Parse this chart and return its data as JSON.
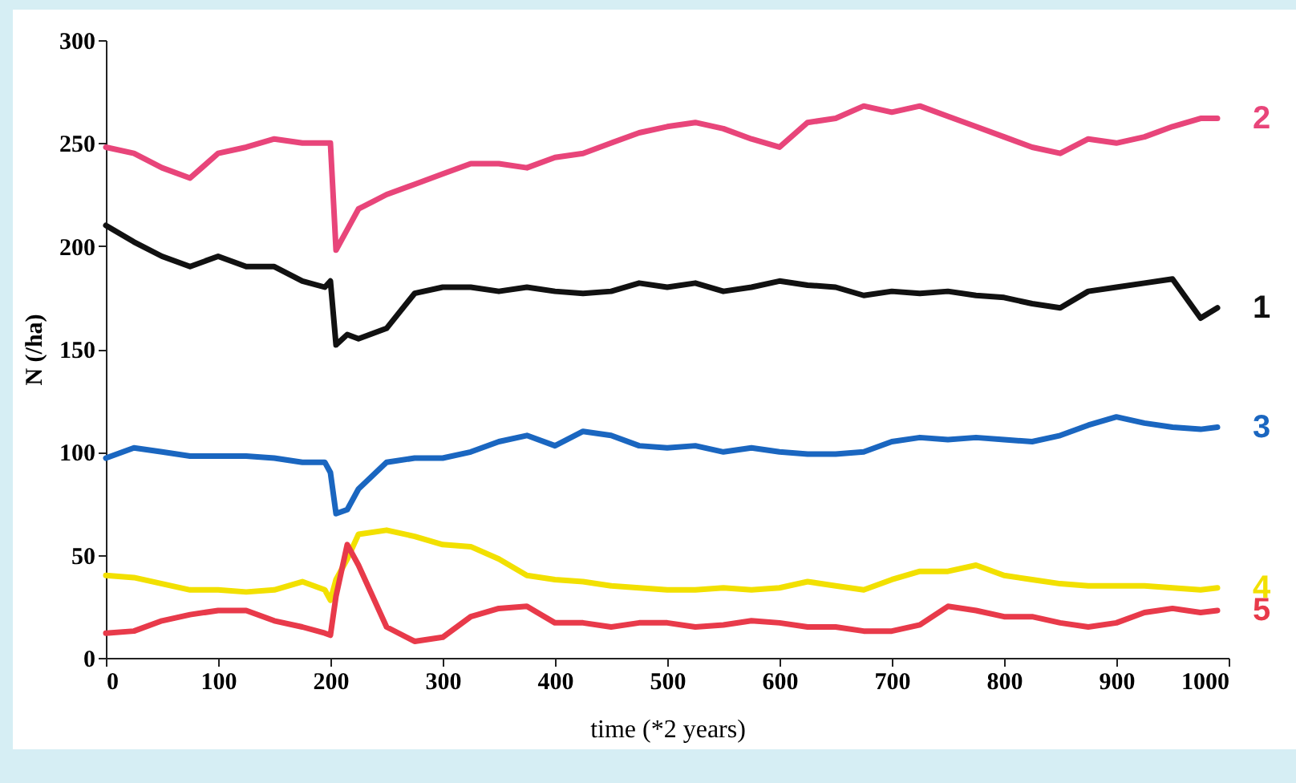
{
  "chart_data": {
    "type": "line",
    "xlabel": "time (*2 years)",
    "ylabel": "N (/ha)",
    "x": [
      0,
      25,
      50,
      75,
      100,
      125,
      150,
      175,
      195,
      200,
      205,
      215,
      225,
      250,
      275,
      300,
      325,
      350,
      375,
      400,
      425,
      450,
      475,
      500,
      525,
      550,
      575,
      600,
      625,
      650,
      675,
      700,
      725,
      750,
      775,
      800,
      825,
      850,
      875,
      900,
      925,
      950,
      975,
      990
    ],
    "xlim": [
      0,
      1000
    ],
    "xticks": [
      0,
      100,
      200,
      300,
      400,
      500,
      600,
      700,
      800,
      900,
      1000
    ],
    "ylim": [
      0,
      300
    ],
    "yticks": [
      0,
      50,
      100,
      150,
      200,
      250,
      300
    ],
    "grid": false,
    "legend": false,
    "marker": "none",
    "line_style": "solid",
    "series": [
      {
        "name": "1",
        "color": "#111111",
        "values": [
          210,
          202,
          195,
          190,
          195,
          190,
          190,
          183,
          180,
          183,
          152,
          157,
          155,
          160,
          177,
          180,
          180,
          178,
          180,
          178,
          177,
          178,
          182,
          180,
          182,
          178,
          180,
          183,
          181,
          180,
          176,
          178,
          177,
          178,
          176,
          175,
          172,
          170,
          178,
          180,
          182,
          184,
          165,
          170
        ]
      },
      {
        "name": "2",
        "color": "#e8457a",
        "values": [
          248,
          245,
          238,
          233,
          245,
          248,
          252,
          250,
          250,
          250,
          198,
          208,
          218,
          225,
          230,
          235,
          240,
          240,
          238,
          243,
          245,
          250,
          255,
          258,
          260,
          257,
          252,
          248,
          260,
          262,
          268,
          265,
          268,
          263,
          258,
          253,
          248,
          245,
          252,
          250,
          253,
          258,
          262,
          262
        ]
      },
      {
        "name": "3",
        "color": "#1a66c0",
        "values": [
          97,
          102,
          100,
          98,
          98,
          98,
          97,
          95,
          95,
          90,
          70,
          72,
          82,
          95,
          97,
          97,
          100,
          105,
          108,
          103,
          110,
          108,
          103,
          102,
          103,
          100,
          102,
          100,
          99,
          99,
          100,
          105,
          107,
          106,
          107,
          106,
          105,
          108,
          113,
          117,
          114,
          112,
          111,
          112
        ]
      },
      {
        "name": "4",
        "color": "#f2e000",
        "values": [
          40,
          39,
          36,
          33,
          33,
          32,
          33,
          37,
          33,
          28,
          38,
          48,
          60,
          62,
          59,
          55,
          54,
          48,
          40,
          38,
          37,
          35,
          34,
          33,
          33,
          34,
          33,
          34,
          37,
          35,
          33,
          38,
          42,
          42,
          45,
          40,
          38,
          36,
          35,
          35,
          35,
          34,
          33,
          34
        ]
      },
      {
        "name": "5",
        "color": "#e83a4a",
        "values": [
          12,
          13,
          18,
          21,
          23,
          23,
          18,
          15,
          12,
          11,
          30,
          55,
          45,
          15,
          8,
          10,
          20,
          24,
          25,
          17,
          17,
          15,
          17,
          17,
          15,
          16,
          18,
          17,
          15,
          15,
          13,
          13,
          16,
          25,
          23,
          20,
          20,
          17,
          15,
          17,
          22,
          24,
          22,
          23
        ]
      }
    ]
  }
}
